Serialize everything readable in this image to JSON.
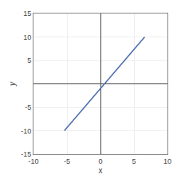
{
  "chart_data": {
    "type": "line",
    "xlabel": "x",
    "ylabel": "y",
    "x": [
      -5.4,
      6.6
    ],
    "values": [
      -10.00018,
      10.00022
    ],
    "color": "#4c6faf",
    "xlim": [
      -10,
      10
    ],
    "xticks": [
      -10,
      -5,
      0,
      5,
      10
    ],
    "ylim": [
      -15,
      15
    ],
    "yticks": [
      -15,
      -10,
      -5,
      5,
      10,
      15
    ],
    "grid": true
  }
}
